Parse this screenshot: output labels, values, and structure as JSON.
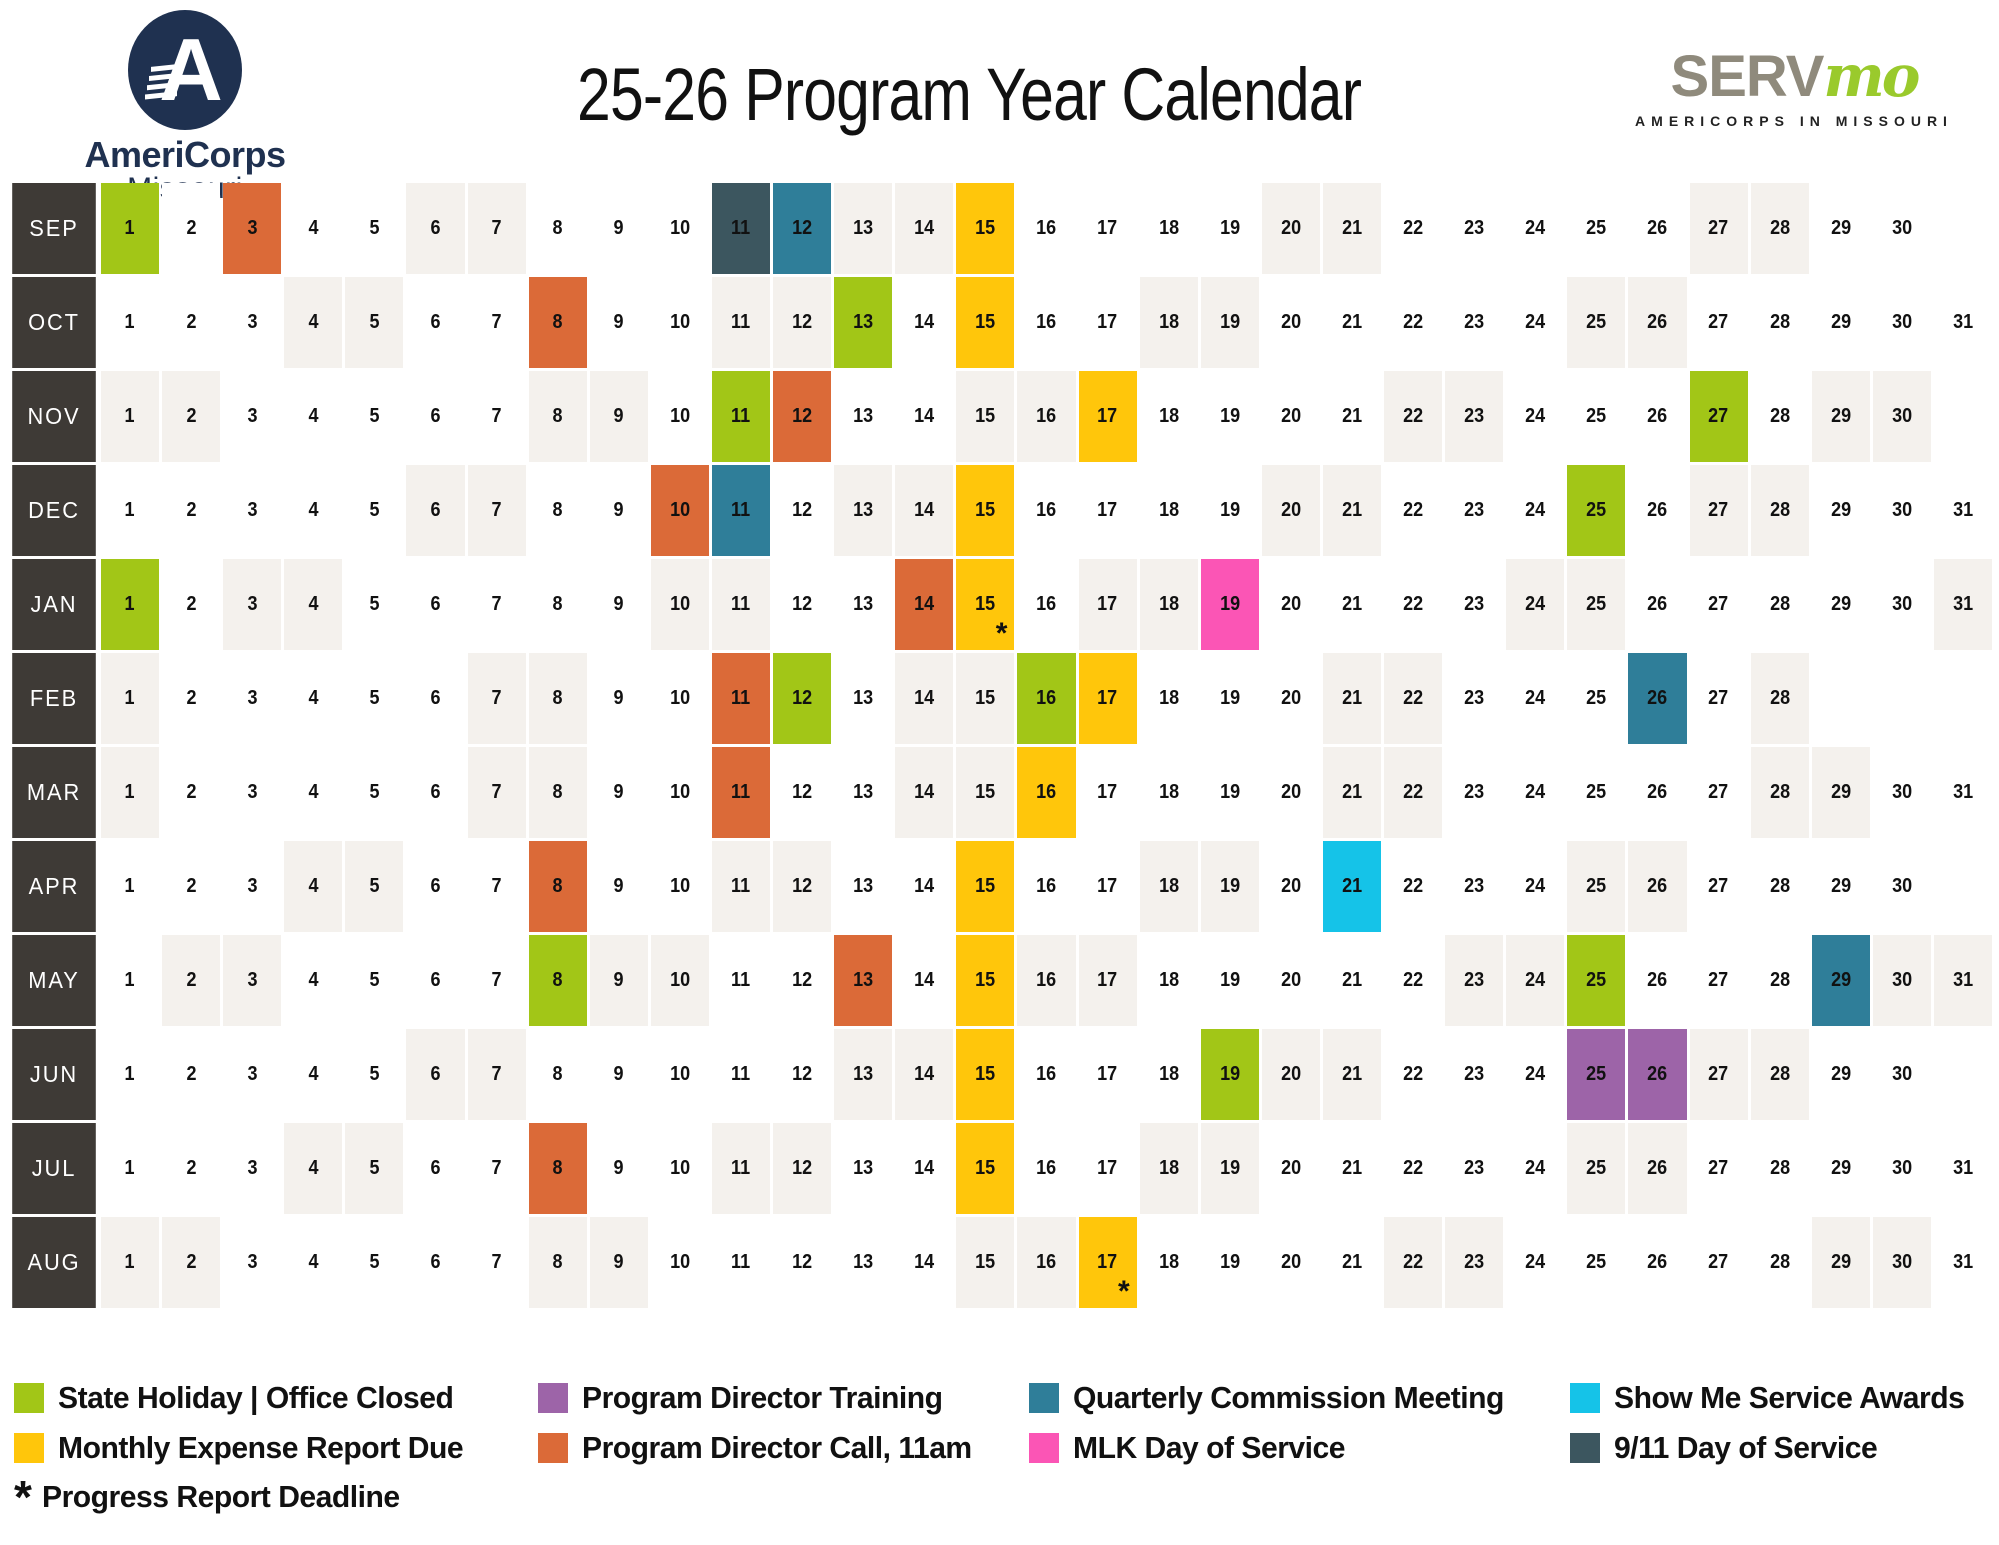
{
  "header": {
    "title": "25-26 Program Year Calendar",
    "americorps": {
      "name": "AmeriCorps",
      "state": "Missouri"
    },
    "servmo": {
      "serv": "SERV",
      "mo": "mo",
      "tagline": "AMERICORPS IN MISSOURI"
    }
  },
  "colors": {
    "holiday": "#A2C617",
    "expense": "#FFC60B",
    "training": "#9D64A8",
    "pd_call": "#DB6A38",
    "commission": "#2F7E99",
    "mlk": "#FB55B5",
    "awards": "#15C3E8",
    "sep11": "#3C565F",
    "weekend": "#F4F1ED",
    "month_label_bg": "#3E3A36",
    "americorps_navy": "#1F3150",
    "servmo_gray": "#8F8A7C",
    "servmo_green": "#9ACA2C",
    "title_text": "#111111"
  },
  "calendar": {
    "months": [
      {
        "label": "SEP",
        "days": 30,
        "weekends": [
          6,
          7,
          13,
          14,
          20,
          21,
          27,
          28
        ],
        "events": {
          "1": "holiday",
          "3": "pd_call",
          "11": "sep11",
          "12": "commission",
          "15": "expense"
        },
        "asterisks": []
      },
      {
        "label": "OCT",
        "days": 31,
        "weekends": [
          4,
          5,
          11,
          12,
          18,
          19,
          25,
          26
        ],
        "events": {
          "8": "pd_call",
          "13": "holiday",
          "15": "expense"
        },
        "asterisks": []
      },
      {
        "label": "NOV",
        "days": 30,
        "weekends": [
          1,
          2,
          8,
          9,
          15,
          16,
          22,
          23,
          29,
          30
        ],
        "events": {
          "11": "holiday",
          "12": "pd_call",
          "17": "expense",
          "27": "holiday"
        },
        "asterisks": []
      },
      {
        "label": "DEC",
        "days": 31,
        "weekends": [
          6,
          7,
          13,
          14,
          20,
          21,
          27,
          28
        ],
        "events": {
          "10": "pd_call",
          "11": "commission",
          "15": "expense",
          "25": "holiday"
        },
        "asterisks": []
      },
      {
        "label": "JAN",
        "days": 31,
        "weekends": [
          3,
          4,
          10,
          11,
          17,
          18,
          24,
          25,
          31
        ],
        "events": {
          "1": "holiday",
          "14": "pd_call",
          "15": "expense",
          "19": "mlk"
        },
        "asterisks": [
          15
        ]
      },
      {
        "label": "FEB",
        "days": 28,
        "weekends": [
          1,
          7,
          8,
          14,
          15,
          21,
          22,
          28
        ],
        "events": {
          "11": "pd_call",
          "12": "holiday",
          "16": "holiday",
          "17": "expense",
          "26": "commission"
        },
        "asterisks": []
      },
      {
        "label": "MAR",
        "days": 31,
        "weekends": [
          1,
          7,
          8,
          14,
          15,
          21,
          22,
          28,
          29
        ],
        "events": {
          "11": "pd_call",
          "16": "expense"
        },
        "asterisks": []
      },
      {
        "label": "APR",
        "days": 30,
        "weekends": [
          4,
          5,
          11,
          12,
          18,
          19,
          25,
          26
        ],
        "events": {
          "8": "pd_call",
          "15": "expense",
          "21": "awards"
        },
        "asterisks": []
      },
      {
        "label": "MAY",
        "days": 31,
        "weekends": [
          2,
          3,
          9,
          10,
          16,
          17,
          23,
          24,
          30,
          31
        ],
        "events": {
          "8": "holiday",
          "13": "pd_call",
          "15": "expense",
          "25": "holiday",
          "29": "commission"
        },
        "asterisks": []
      },
      {
        "label": "JUN",
        "days": 30,
        "weekends": [
          6,
          7,
          13,
          14,
          20,
          21,
          27,
          28
        ],
        "events": {
          "15": "expense",
          "19": "holiday",
          "25": "training",
          "26": "training"
        },
        "asterisks": []
      },
      {
        "label": "JUL",
        "days": 31,
        "weekends": [
          4,
          5,
          11,
          12,
          18,
          19,
          25,
          26
        ],
        "events": {
          "8": "pd_call",
          "15": "expense"
        },
        "asterisks": []
      },
      {
        "label": "AUG",
        "days": 31,
        "weekends": [
          1,
          2,
          8,
          9,
          15,
          16,
          22,
          23,
          29,
          30
        ],
        "events": {
          "17": "expense"
        },
        "asterisks": [
          17
        ]
      }
    ]
  },
  "legend": {
    "items": [
      {
        "key": "holiday",
        "label": "State Holiday | Office Closed"
      },
      {
        "key": "training",
        "label": "Program Director Training"
      },
      {
        "key": "commission",
        "label": "Quarterly Commission Meeting"
      },
      {
        "key": "awards",
        "label": "Show Me Service Awards"
      },
      {
        "key": "expense",
        "label": "Monthly Expense Report Due"
      },
      {
        "key": "pd_call",
        "label": "Program Director Call, 11am"
      },
      {
        "key": "mlk",
        "label": "MLK Day of Service"
      },
      {
        "key": "sep11",
        "label": "9/11 Day of Service"
      }
    ],
    "asterisk_symbol": "*",
    "asterisk_label": "Progress Report Deadline"
  }
}
